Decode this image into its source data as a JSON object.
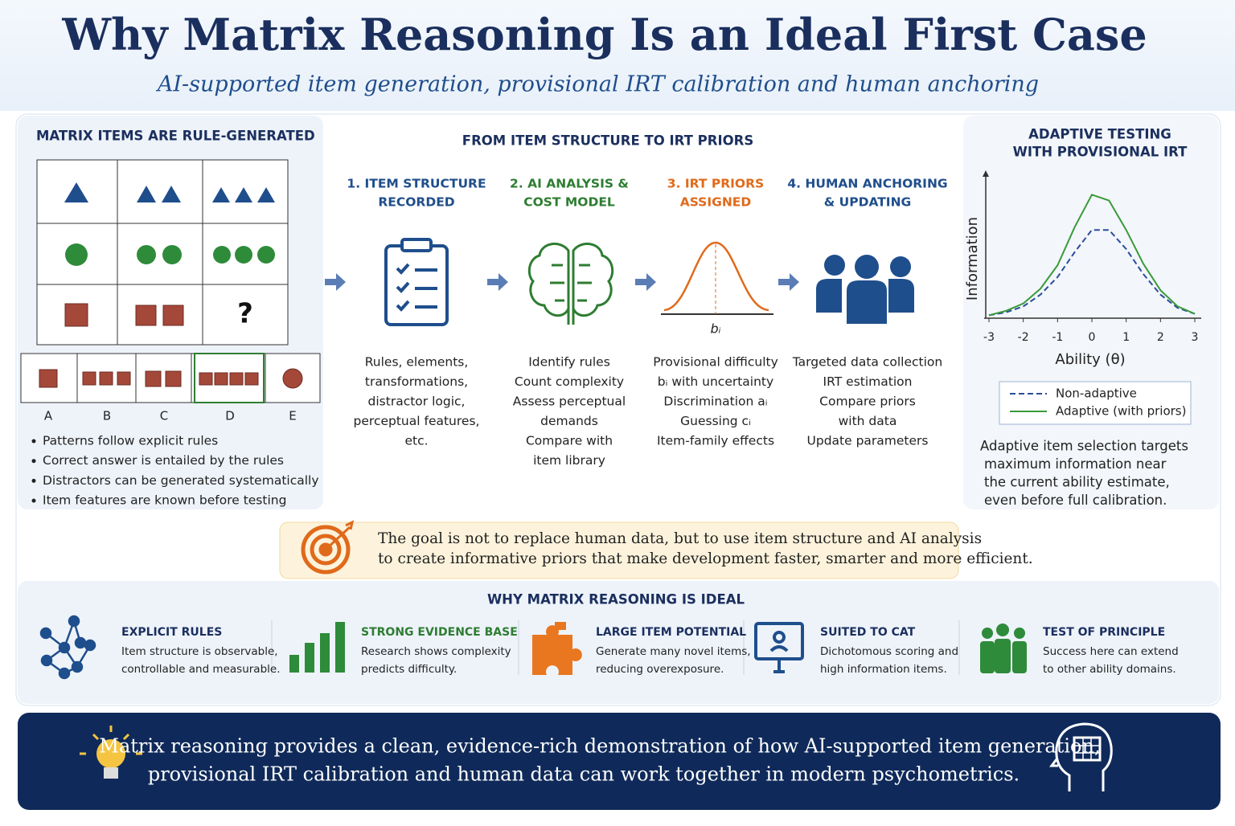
{
  "header": {
    "title": "Why Matrix Reasoning Is an Ideal First Case",
    "subtitle": "AI-supported item generation, provisional IRT calibration and human anchoring"
  },
  "matrix_panel": {
    "title": "MATRIX ITEMS ARE RULE-GENERATED",
    "missing": "?",
    "options": [
      "A",
      "B",
      "C",
      "D",
      "E"
    ],
    "bullets": [
      "Patterns follow explicit rules",
      "Correct answer is entailed by the rules",
      "Distractors can be generated systematically",
      "Item features are known before testing"
    ]
  },
  "flow": {
    "title": "FROM ITEM STRUCTURE TO IRT PRIORS",
    "steps": [
      {
        "title": [
          "1. ITEM STRUCTURE",
          "RECORDED"
        ],
        "items": [
          "Rules, elements,",
          "transformations,",
          "distractor logic,",
          "perceptual features,",
          "etc."
        ]
      },
      {
        "title": [
          "2. AI ANALYSIS &",
          "COST MODEL"
        ],
        "items": [
          "Identify rules",
          "Count complexity",
          "Assess perceptual",
          "demands",
          "Compare with",
          "item library"
        ]
      },
      {
        "title": [
          "3. IRT PRIORS",
          "ASSIGNED"
        ],
        "curve_label": "bᵢ",
        "items": [
          "Provisional difficulty",
          "bᵢ with uncertainty",
          "Discrimination aᵢ",
          "Guessing cᵢ",
          "Item-family effects"
        ]
      },
      {
        "title": [
          "4. HUMAN ANCHORING",
          "& UPDATING"
        ],
        "items": [
          "Targeted data collection",
          "IRT estimation",
          "Compare priors",
          "with data",
          "Update parameters"
        ]
      }
    ]
  },
  "chart_data": {
    "type": "line",
    "title": [
      "ADAPTIVE TESTING",
      "WITH PROVISIONAL IRT"
    ],
    "x_label": "Ability (θ)",
    "y_label": "Information",
    "x": [
      -3,
      -2.5,
      -2,
      -1.5,
      -1,
      -0.5,
      0,
      0.5,
      1,
      1.5,
      2,
      2.5,
      3
    ],
    "series": [
      {
        "name": "Non-adaptive",
        "color": "#2b4c9b",
        "style": "dashed",
        "values": [
          0.02,
          0.04,
          0.08,
          0.16,
          0.28,
          0.45,
          0.6,
          0.6,
          0.47,
          0.3,
          0.16,
          0.07,
          0.03
        ]
      },
      {
        "name": "Adaptive (with priors)",
        "color": "#3a9a3a",
        "style": "solid",
        "values": [
          0.02,
          0.05,
          0.1,
          0.2,
          0.36,
          0.62,
          0.84,
          0.8,
          0.6,
          0.37,
          0.19,
          0.08,
          0.03
        ]
      }
    ],
    "xlim": [
      -3,
      3
    ],
    "xticks": [
      -3,
      -2,
      -1,
      0,
      1,
      2,
      3
    ],
    "ylim": [
      0,
      1
    ],
    "caption": [
      "Adaptive item selection targets",
      "maximum information near",
      "the current ability estimate,",
      "even before full calibration."
    ]
  },
  "goal": [
    "The goal is not to replace human data,  but to use item structure and AI analysis",
    "to create informative priors that make development faster, smarter and more efficient."
  ],
  "ideal": {
    "title": "WHY MATRIX REASONING IS IDEAL",
    "features": [
      {
        "title": "EXPLICIT RULES",
        "text": [
          "Item structure is observable,",
          "controllable and measurable."
        ]
      },
      {
        "title": "STRONG EVIDENCE BASE",
        "text": [
          "Research shows complexity",
          "predicts difficulty."
        ]
      },
      {
        "title": "LARGE ITEM POTENTIAL",
        "text": [
          "Generate many novel items,",
          "reducing overexposure."
        ]
      },
      {
        "title": "SUITED TO CAT",
        "text": [
          "Dichotomous scoring and",
          "high information items."
        ]
      },
      {
        "title": "TEST OF PRINCIPLE",
        "text": [
          "Success here can extend",
          "to other ability domains."
        ]
      }
    ]
  },
  "footer": [
    "Matrix reasoning provides a clean, evidence-rich demonstration of how AI-supported item generation,",
    "provisional IRT calibration and human data can work together in modern psychometrics."
  ]
}
